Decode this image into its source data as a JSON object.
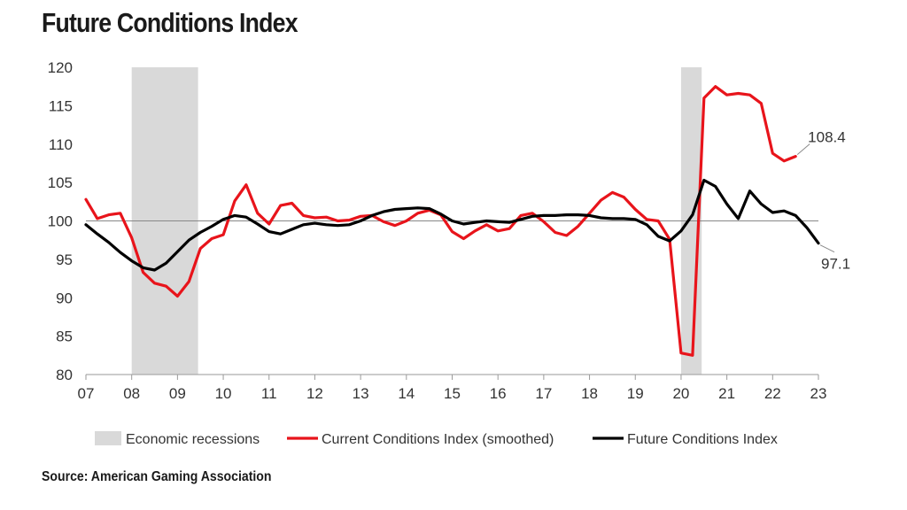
{
  "title": "Future Conditions Index",
  "source": "Source: American Gaming Association",
  "chart_data": {
    "type": "line",
    "title": "Future Conditions Index",
    "xlabel": "",
    "ylabel": "",
    "x_ticks": [
      "07",
      "08",
      "09",
      "10",
      "11",
      "12",
      "13",
      "14",
      "15",
      "16",
      "17",
      "18",
      "19",
      "20",
      "21",
      "22",
      "23"
    ],
    "xlim": [
      2007,
      2023
    ],
    "ylim": [
      80,
      120
    ],
    "y_ticks": [
      80,
      85,
      90,
      95,
      100,
      105,
      110,
      115,
      120
    ],
    "reference_line": 100,
    "recessions": [
      {
        "start": 2008.0,
        "end": 2009.45
      },
      {
        "start": 2020.0,
        "end": 2020.45
      }
    ],
    "legend": {
      "position": "bottom",
      "recession_label": "Economic recessions"
    },
    "series": [
      {
        "name": "Current Conditions Index (smoothed)",
        "color": "#e8141b",
        "x": [
          2007.0,
          2007.25,
          2007.5,
          2007.75,
          2008.0,
          2008.25,
          2008.5,
          2008.75,
          2009.0,
          2009.25,
          2009.5,
          2009.75,
          2010.0,
          2010.25,
          2010.5,
          2010.75,
          2011.0,
          2011.25,
          2011.5,
          2011.75,
          2012.0,
          2012.25,
          2012.5,
          2012.75,
          2013.0,
          2013.25,
          2013.5,
          2013.75,
          2014.0,
          2014.25,
          2014.5,
          2014.75,
          2015.0,
          2015.25,
          2015.5,
          2015.75,
          2016.0,
          2016.25,
          2016.5,
          2016.75,
          2017.0,
          2017.25,
          2017.5,
          2017.75,
          2018.0,
          2018.25,
          2018.5,
          2018.75,
          2019.0,
          2019.25,
          2019.5,
          2019.75,
          2020.0,
          2020.25,
          2020.5,
          2020.75,
          2021.0,
          2021.25,
          2021.5,
          2021.75,
          2022.0,
          2022.25,
          2022.5
        ],
        "values": [
          102.8,
          100.3,
          100.8,
          101.0,
          97.8,
          93.3,
          91.9,
          91.5,
          90.2,
          92.1,
          96.4,
          97.7,
          98.2,
          102.6,
          104.7,
          101.0,
          99.6,
          102.0,
          102.3,
          100.7,
          100.4,
          100.5,
          100.0,
          100.1,
          100.6,
          100.7,
          99.9,
          99.4,
          100.0,
          101.0,
          101.4,
          100.8,
          98.6,
          97.7,
          98.7,
          99.5,
          98.7,
          99.0,
          100.7,
          101.0,
          99.9,
          98.5,
          98.1,
          99.3,
          101.0,
          102.7,
          103.7,
          103.1,
          101.5,
          100.2,
          100.0,
          97.6,
          82.8,
          82.5,
          116.0,
          117.5,
          116.4,
          116.6,
          116.4,
          115.3,
          108.8,
          107.8,
          108.4
        ]
      },
      {
        "name": "Future Conditions Index",
        "color": "#000000",
        "x": [
          2007.0,
          2007.25,
          2007.5,
          2007.75,
          2008.0,
          2008.25,
          2008.5,
          2008.75,
          2009.0,
          2009.25,
          2009.5,
          2009.75,
          2010.0,
          2010.25,
          2010.5,
          2010.75,
          2011.0,
          2011.25,
          2011.5,
          2011.75,
          2012.0,
          2012.25,
          2012.5,
          2012.75,
          2013.0,
          2013.25,
          2013.5,
          2013.75,
          2014.0,
          2014.25,
          2014.5,
          2014.75,
          2015.0,
          2015.25,
          2015.5,
          2015.75,
          2016.0,
          2016.25,
          2016.5,
          2016.75,
          2017.0,
          2017.25,
          2017.5,
          2017.75,
          2018.0,
          2018.25,
          2018.5,
          2018.75,
          2019.0,
          2019.25,
          2019.5,
          2019.75,
          2020.0,
          2020.25,
          2020.5,
          2020.75,
          2021.0,
          2021.25,
          2021.5,
          2021.75,
          2022.0,
          2022.25,
          2022.5,
          2022.75,
          2023.0
        ],
        "values": [
          99.5,
          98.3,
          97.2,
          95.9,
          94.8,
          93.9,
          93.6,
          94.5,
          96.0,
          97.5,
          98.5,
          99.3,
          100.2,
          100.7,
          100.5,
          99.6,
          98.6,
          98.3,
          98.9,
          99.5,
          99.7,
          99.5,
          99.4,
          99.5,
          100.0,
          100.7,
          101.2,
          101.5,
          101.6,
          101.7,
          101.6,
          100.9,
          100.0,
          99.6,
          99.8,
          100.0,
          99.9,
          99.8,
          100.2,
          100.6,
          100.7,
          100.7,
          100.8,
          100.8,
          100.7,
          100.4,
          100.3,
          100.3,
          100.2,
          99.5,
          98.0,
          97.4,
          98.7,
          100.8,
          105.3,
          104.5,
          102.2,
          100.3,
          103.9,
          102.2,
          101.1,
          101.3,
          100.7,
          99.1,
          97.1
        ]
      }
    ],
    "annotations": [
      {
        "text": "108.4",
        "series": 0
      },
      {
        "text": "97.1",
        "series": 1
      }
    ]
  }
}
